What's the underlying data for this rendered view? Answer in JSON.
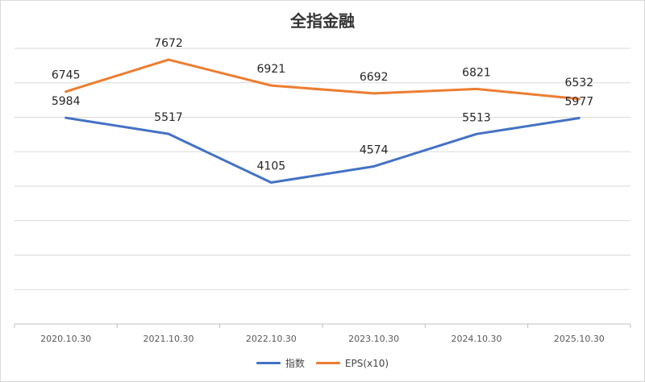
{
  "chart_data": {
    "type": "line",
    "title": "全指金融",
    "categories": [
      "2020.10.30",
      "2021.10.30",
      "2022.10.30",
      "2023.10.30",
      "2024.10.30",
      "2025.10.30"
    ],
    "series": [
      {
        "name": "指数",
        "values": [
          5984,
          5517,
          4105,
          4574,
          5513,
          5977
        ],
        "color": "#4472C4"
      },
      {
        "name": "EPS(x10)",
        "values": [
          6745,
          7672,
          6921,
          6692,
          6821,
          6532
        ],
        "color": "#ED7D31"
      }
    ],
    "ylim": [
      0,
      8000
    ],
    "grid": true,
    "legend": "bottom"
  }
}
